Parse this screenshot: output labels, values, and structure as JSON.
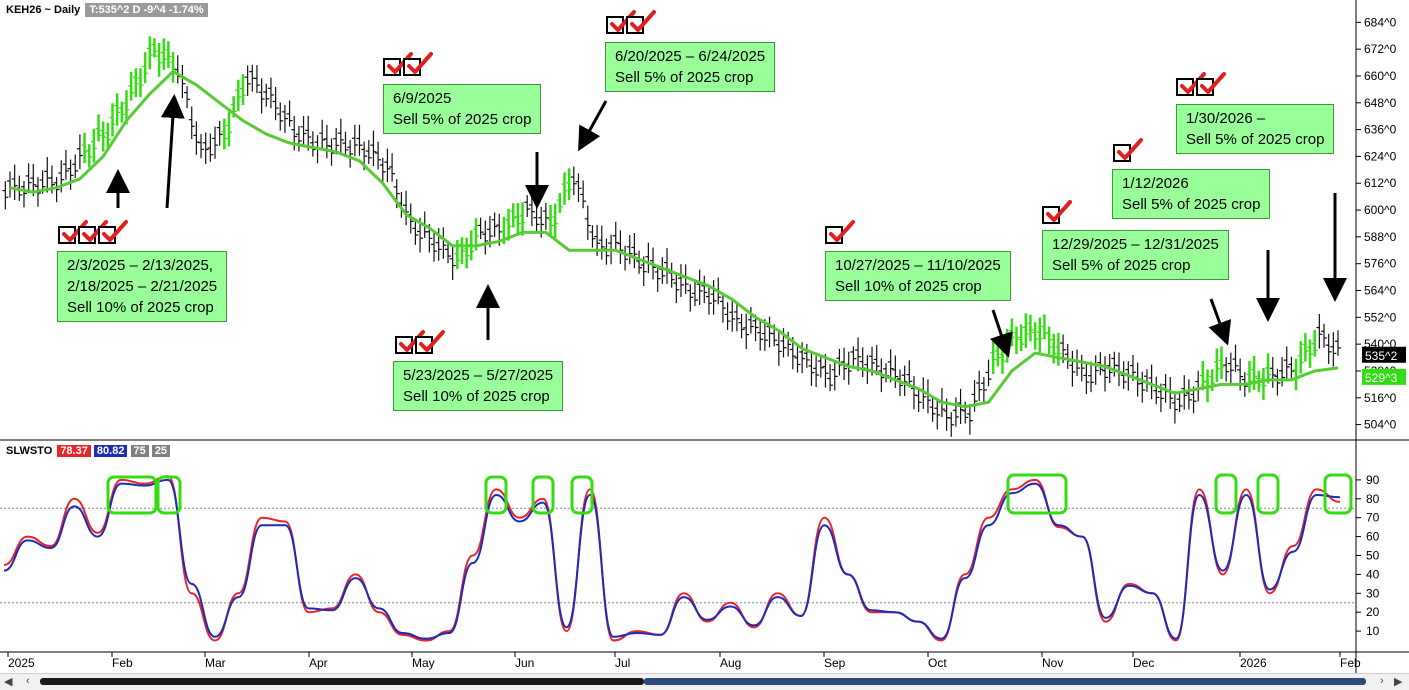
{
  "header": {
    "symbol": "KEH26 ~ Daily",
    "info": "T:535^2 D  -9^4  -1.74%"
  },
  "indicator": {
    "name": "SLWSTO",
    "k_value": "78.37",
    "d_value": "80.82",
    "upper": "75",
    "lower": "25",
    "k_color": "#e8262a",
    "d_color": "#1f2bb8"
  },
  "price_axis": {
    "labels": [
      "684^0",
      "672^0",
      "660^0",
      "648^0",
      "636^0",
      "624^0",
      "612^0",
      "600^0",
      "588^0",
      "576^0",
      "564^0",
      "552^0",
      "540^0",
      "528^0",
      "516^0",
      "504^0"
    ],
    "values": [
      684,
      672,
      660,
      648,
      636,
      624,
      612,
      600,
      588,
      576,
      564,
      552,
      540,
      528,
      516,
      504
    ],
    "last_label": "535^2",
    "ma_label": "529^3"
  },
  "stoch_axis": {
    "labels": [
      "90",
      "80",
      "70",
      "60",
      "50",
      "40",
      "30",
      "20",
      "10"
    ],
    "values": [
      90,
      80,
      70,
      60,
      50,
      40,
      30,
      20,
      10
    ]
  },
  "time_axis": {
    "labels": [
      "2025",
      "Feb",
      "Mar",
      "Apr",
      "May",
      "Jun",
      "Jul",
      "Aug",
      "Sep",
      "Oct",
      "Nov",
      "Dec",
      "2026",
      "Feb"
    ]
  },
  "annotations": [
    {
      "lines": [
        "2/3/2025 – 2/13/2025,",
        "2/18/2025 – 2/21/2025",
        "Sell 10% of 2025 crop"
      ]
    },
    {
      "lines": [
        "6/9/2025",
        "Sell 5% of 2025 crop"
      ]
    },
    {
      "lines": [
        "5/23/2025 – 5/27/2025",
        "Sell 10% of 2025 crop"
      ]
    },
    {
      "lines": [
        "6/20/2025 – 6/24/2025",
        "Sell 5% of 2025 crop"
      ]
    },
    {
      "lines": [
        "10/27/2025 – 11/10/2025",
        "Sell 10% of 2025 crop"
      ]
    },
    {
      "lines": [
        "12/29/2025 – 12/31/2025",
        "Sell 5% of 2025 crop"
      ]
    },
    {
      "lines": [
        "1/12/2026",
        "Sell 5% of 2025 crop"
      ]
    },
    {
      "lines": [
        "1/30/2026 –",
        "Sell 5% of 2025 crop"
      ]
    }
  ],
  "colors": {
    "ma": "#55cc33",
    "highlight": "#33dd11",
    "bar": "#111111",
    "annotation_bg": "#99ff99",
    "check": "#e02020"
  },
  "chart_data": [
    {
      "type": "ohlc",
      "title": "KEH26 ~ Daily",
      "x": [
        "2025-01-02",
        "2025-01-09",
        "2025-01-16",
        "2025-01-23",
        "2025-01-30",
        "2025-02-06",
        "2025-02-13",
        "2025-02-20",
        "2025-02-27",
        "2025-03-06",
        "2025-03-13",
        "2025-03-20",
        "2025-03-27",
        "2025-04-03",
        "2025-04-10",
        "2025-04-17",
        "2025-04-24",
        "2025-05-01",
        "2025-05-08",
        "2025-05-15",
        "2025-05-22",
        "2025-05-29",
        "2025-06-05",
        "2025-06-12",
        "2025-06-19",
        "2025-06-26",
        "2025-07-03",
        "2025-07-10",
        "2025-07-17",
        "2025-07-24",
        "2025-07-31",
        "2025-08-07",
        "2025-08-14",
        "2025-08-21",
        "2025-08-28",
        "2025-09-04",
        "2025-09-11",
        "2025-09-18",
        "2025-09-25",
        "2025-10-02",
        "2025-10-09",
        "2025-10-16",
        "2025-10-23",
        "2025-10-30",
        "2025-11-06",
        "2025-11-13",
        "2025-11-20",
        "2025-11-27",
        "2025-12-04",
        "2025-12-11",
        "2025-12-18",
        "2025-12-25",
        "2026-01-01",
        "2026-01-08",
        "2026-01-15",
        "2026-01-22",
        "2026-01-29",
        "2026-02-03"
      ],
      "close": [
        610,
        612,
        614,
        626,
        636,
        652,
        672,
        664,
        626,
        634,
        660,
        650,
        636,
        630,
        630,
        628,
        620,
        594,
        586,
        578,
        590,
        592,
        600,
        594,
        616,
        584,
        584,
        576,
        572,
        564,
        562,
        550,
        546,
        540,
        532,
        526,
        534,
        530,
        526,
        516,
        508,
        510,
        532,
        544,
        546,
        536,
        526,
        530,
        526,
        520,
        514,
        522,
        532,
        524,
        526,
        530,
        544,
        535.25
      ],
      "ma": [
        610,
        608,
        610,
        614,
        624,
        640,
        652,
        662,
        656,
        648,
        640,
        634,
        630,
        628,
        626,
        622,
        612,
        598,
        592,
        584,
        584,
        586,
        590,
        590,
        582,
        582,
        582,
        578,
        574,
        570,
        566,
        560,
        552,
        546,
        538,
        534,
        530,
        528,
        524,
        520,
        514,
        512,
        514,
        528,
        536,
        534,
        532,
        530,
        526,
        522,
        518,
        520,
        522,
        522,
        524,
        524,
        528,
        529.375
      ],
      "ylim": [
        498,
        694
      ]
    },
    {
      "type": "line",
      "title": "SLWSTO",
      "x": [
        "2025-01-02",
        "2025-01-09",
        "2025-01-16",
        "2025-01-23",
        "2025-01-30",
        "2025-02-06",
        "2025-02-13",
        "2025-02-20",
        "2025-02-27",
        "2025-03-06",
        "2025-03-13",
        "2025-03-20",
        "2025-03-27",
        "2025-04-03",
        "2025-04-10",
        "2025-04-17",
        "2025-04-24",
        "2025-05-01",
        "2025-05-08",
        "2025-05-15",
        "2025-05-22",
        "2025-05-29",
        "2025-06-05",
        "2025-06-12",
        "2025-06-19",
        "2025-06-26",
        "2025-07-03",
        "2025-07-10",
        "2025-07-17",
        "2025-07-24",
        "2025-07-31",
        "2025-08-07",
        "2025-08-14",
        "2025-08-21",
        "2025-08-28",
        "2025-09-04",
        "2025-09-11",
        "2025-09-18",
        "2025-09-25",
        "2025-10-02",
        "2025-10-09",
        "2025-10-16",
        "2025-10-23",
        "2025-10-30",
        "2025-11-06",
        "2025-11-13",
        "2025-11-20",
        "2025-11-27",
        "2025-12-04",
        "2025-12-11",
        "2025-12-18",
        "2025-12-25",
        "2026-01-01",
        "2026-01-08",
        "2026-01-15",
        "2026-01-22",
        "2026-01-29",
        "2026-02-03"
      ],
      "series": [
        {
          "values": [
            45,
            60,
            55,
            80,
            62,
            90,
            88,
            92,
            30,
            5,
            30,
            70,
            68,
            20,
            22,
            40,
            20,
            8,
            5,
            10,
            50,
            85,
            70,
            80,
            10,
            85,
            5,
            10,
            8,
            30,
            15,
            25,
            12,
            30,
            18,
            70,
            40,
            20,
            20,
            15,
            5,
            40,
            70,
            85,
            90,
            65,
            60,
            15,
            35,
            30,
            5,
            85,
            40,
            85,
            30,
            55,
            85,
            78.37
          ]
        },
        {
          "values": [
            42,
            58,
            54,
            76,
            60,
            88,
            87,
            90,
            35,
            7,
            28,
            66,
            66,
            22,
            21,
            38,
            22,
            9,
            6,
            9,
            46,
            82,
            68,
            78,
            12,
            82,
            7,
            9,
            8,
            28,
            16,
            23,
            13,
            28,
            18,
            66,
            40,
            21,
            20,
            15,
            6,
            38,
            66,
            83,
            88,
            66,
            60,
            17,
            34,
            30,
            6,
            82,
            42,
            82,
            32,
            52,
            82,
            80.82
          ]
        }
      ],
      "ylim": [
        0,
        100
      ],
      "reference_lines": [
        75,
        25
      ]
    }
  ]
}
